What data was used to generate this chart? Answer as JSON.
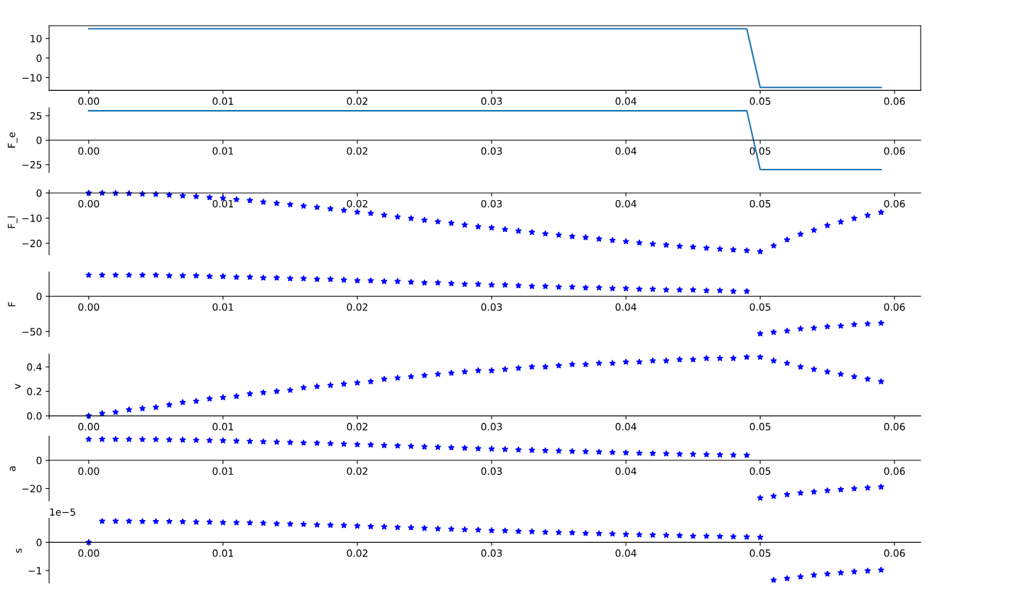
{
  "chart_data": [
    {
      "type": "line",
      "color": "#1f77b4",
      "line_style": "solid",
      "x": [
        0,
        0.001,
        0.002,
        0.003,
        0.004,
        0.005,
        0.006,
        0.007,
        0.008,
        0.009,
        0.01,
        0.011,
        0.012,
        0.013,
        0.014,
        0.015,
        0.016,
        0.017,
        0.018,
        0.019,
        0.02,
        0.021,
        0.022,
        0.023,
        0.024,
        0.025,
        0.026,
        0.027,
        0.028,
        0.029,
        0.03,
        0.031,
        0.032,
        0.033,
        0.034,
        0.035,
        0.036,
        0.037,
        0.038,
        0.039,
        0.04,
        0.041,
        0.042,
        0.043,
        0.044,
        0.045,
        0.046,
        0.047,
        0.048,
        0.049,
        0.05,
        0.051,
        0.052,
        0.053,
        0.054,
        0.055,
        0.056,
        0.057,
        0.058,
        0.059
      ],
      "values": [
        15,
        15,
        15,
        15,
        15,
        15,
        15,
        15,
        15,
        15,
        15,
        15,
        15,
        15,
        15,
        15,
        15,
        15,
        15,
        15,
        15,
        15,
        15,
        15,
        15,
        15,
        15,
        15,
        15,
        15,
        15,
        15,
        15,
        15,
        15,
        15,
        15,
        15,
        15,
        15,
        15,
        15,
        15,
        15,
        15,
        15,
        15,
        15,
        15,
        15,
        -15,
        -15,
        -15,
        -15,
        -15,
        -15,
        -15,
        -15,
        -15,
        -15
      ],
      "xlim": [
        -0.00295,
        0.06195
      ],
      "xticks": [
        {
          "value": 0,
          "label": "0.00"
        },
        {
          "value": 0.01,
          "label": "0.01"
        },
        {
          "value": 0.02,
          "label": "0.02"
        },
        {
          "value": 0.03,
          "label": "0.03"
        },
        {
          "value": 0.04,
          "label": "0.04"
        },
        {
          "value": 0.05,
          "label": "0.05"
        },
        {
          "value": 0.06,
          "label": "0.06"
        }
      ],
      "ylim": [
        -16.5,
        16.5
      ],
      "yticks": [
        {
          "value": -10,
          "label": "−10"
        },
        0,
        10
      ]
    },
    {
      "type": "line",
      "color": "#1f77b4",
      "line_style": "solid",
      "ylabel": "F_e",
      "x": [
        0,
        0.001,
        0.002,
        0.003,
        0.004,
        0.005,
        0.006,
        0.007,
        0.008,
        0.009,
        0.01,
        0.011,
        0.012,
        0.013,
        0.014,
        0.015,
        0.016,
        0.017,
        0.018,
        0.019,
        0.02,
        0.021,
        0.022,
        0.023,
        0.024,
        0.025,
        0.026,
        0.027,
        0.028,
        0.029,
        0.03,
        0.031,
        0.032,
        0.033,
        0.034,
        0.035,
        0.036,
        0.037,
        0.038,
        0.039,
        0.04,
        0.041,
        0.042,
        0.043,
        0.044,
        0.045,
        0.046,
        0.047,
        0.048,
        0.049,
        0.05,
        0.051,
        0.052,
        0.053,
        0.054,
        0.055,
        0.056,
        0.057,
        0.058,
        0.059
      ],
      "values": [
        30,
        30,
        30,
        30,
        30,
        30,
        30,
        30,
        30,
        30,
        30,
        30,
        30,
        30,
        30,
        30,
        30,
        30,
        30,
        30,
        30,
        30,
        30,
        30,
        30,
        30,
        30,
        30,
        30,
        30,
        30,
        30,
        30,
        30,
        30,
        30,
        30,
        30,
        30,
        30,
        30,
        30,
        30,
        30,
        30,
        30,
        30,
        30,
        30,
        30,
        -30,
        -30,
        -30,
        -30,
        -30,
        -30,
        -30,
        -30,
        -30,
        -30
      ],
      "xlim": [
        -0.00295,
        0.06195
      ],
      "xticks": [
        {
          "value": 0,
          "label": "0.00"
        },
        {
          "value": 0.01,
          "label": "0.01"
        },
        {
          "value": 0.02,
          "label": "0.02"
        },
        {
          "value": 0.03,
          "label": "0.03"
        },
        {
          "value": 0.04,
          "label": "0.04"
        },
        {
          "value": 0.05,
          "label": "0.05"
        },
        {
          "value": 0.06,
          "label": "0.06"
        }
      ],
      "ylim": [
        -33,
        33
      ],
      "yticks": [
        {
          "value": -25,
          "label": "−25"
        },
        0,
        25
      ]
    },
    {
      "type": "scatter",
      "color": "#0000ff",
      "marker": "star",
      "ylabel": "F_l",
      "x": [
        0,
        0.001,
        0.002,
        0.003,
        0.004,
        0.005,
        0.006,
        0.007,
        0.008,
        0.009,
        0.01,
        0.011,
        0.012,
        0.013,
        0.014,
        0.015,
        0.016,
        0.017,
        0.018,
        0.019,
        0.02,
        0.021,
        0.022,
        0.023,
        0.024,
        0.025,
        0.026,
        0.027,
        0.028,
        0.029,
        0.03,
        0.031,
        0.032,
        0.033,
        0.034,
        0.035,
        0.036,
        0.037,
        0.038,
        0.039,
        0.04,
        0.041,
        0.042,
        0.043,
        0.044,
        0.045,
        0.046,
        0.047,
        0.048,
        0.049,
        0.05,
        0.051,
        0.052,
        0.053,
        0.054,
        0.055,
        0.056,
        0.057,
        0.058,
        0.059
      ],
      "values": [
        0,
        0,
        -0.1,
        -0.2,
        -0.4,
        -0.5,
        -0.8,
        -1.1,
        -1.4,
        -1.8,
        -2.1,
        -2.6,
        -3.0,
        -3.6,
        -4.1,
        -4.6,
        -5.2,
        -5.7,
        -6.3,
        -6.9,
        -7.6,
        -8.1,
        -8.8,
        -9.5,
        -10.1,
        -10.8,
        -11.4,
        -12.0,
        -12.7,
        -13.4,
        -13.8,
        -14.5,
        -15.1,
        -15.6,
        -16.2,
        -16.7,
        -17.3,
        -17.7,
        -18.3,
        -18.8,
        -19.3,
        -19.8,
        -20.3,
        -20.7,
        -21.2,
        -21.5,
        -21.9,
        -22.3,
        -22.6,
        -22.9,
        -23.3,
        -21.0,
        -18.6,
        -16.4,
        -14.8,
        -12.9,
        -11.5,
        -10.1,
        -8.9,
        -7.7
      ],
      "xlim": [
        -0.00295,
        0.06195
      ],
      "xticks": [
        {
          "value": 0,
          "label": "0.00"
        },
        {
          "value": 0.01,
          "label": "0.01"
        },
        {
          "value": 0.02,
          "label": "0.02"
        },
        {
          "value": 0.03,
          "label": "0.03"
        },
        {
          "value": 0.04,
          "label": "0.04"
        },
        {
          "value": 0.05,
          "label": "0.05"
        },
        {
          "value": 0.06,
          "label": "0.06"
        }
      ],
      "ylim": [
        -24.5,
        1.2
      ],
      "yticks": [
        {
          "value": -20,
          "label": "−20"
        },
        {
          "value": -10,
          "label": "−10"
        },
        0
      ]
    },
    {
      "type": "scatter",
      "color": "#0000ff",
      "marker": "star",
      "ylabel": "F",
      "x": [
        0,
        0.001,
        0.002,
        0.003,
        0.004,
        0.005,
        0.006,
        0.007,
        0.008,
        0.009,
        0.01,
        0.011,
        0.012,
        0.013,
        0.014,
        0.015,
        0.016,
        0.017,
        0.018,
        0.019,
        0.02,
        0.021,
        0.022,
        0.023,
        0.024,
        0.025,
        0.026,
        0.027,
        0.028,
        0.029,
        0.03,
        0.031,
        0.032,
        0.033,
        0.034,
        0.035,
        0.036,
        0.037,
        0.038,
        0.039,
        0.04,
        0.041,
        0.042,
        0.043,
        0.044,
        0.045,
        0.046,
        0.047,
        0.048,
        0.049,
        0.05,
        0.051,
        0.052,
        0.053,
        0.054,
        0.055,
        0.056,
        0.057,
        0.058,
        0.059
      ],
      "values": [
        30,
        30,
        30,
        30,
        30,
        30,
        29,
        29,
        29,
        28,
        28,
        27,
        27,
        26,
        26,
        25,
        25,
        24,
        24,
        23,
        22,
        22,
        21,
        21,
        20,
        19,
        19,
        18,
        17,
        17,
        16,
        16,
        15,
        14,
        14,
        13,
        13,
        12,
        12,
        11,
        11,
        10,
        10,
        9,
        9,
        9,
        8,
        8,
        7,
        7,
        -53,
        -51,
        -49,
        -46,
        -45,
        -43,
        -42,
        -40,
        -39,
        -38
      ],
      "xlim": [
        -0.00295,
        0.06195
      ],
      "xticks": [
        {
          "value": 0,
          "label": "0.00"
        },
        {
          "value": 0.01,
          "label": "0.01"
        },
        {
          "value": 0.02,
          "label": "0.02"
        },
        {
          "value": 0.03,
          "label": "0.03"
        },
        {
          "value": 0.04,
          "label": "0.04"
        },
        {
          "value": 0.05,
          "label": "0.05"
        },
        {
          "value": 0.06,
          "label": "0.06"
        }
      ],
      "ylim": [
        -57.2,
        34.2
      ],
      "yticks": [
        {
          "value": -50,
          "label": "−50"
        },
        0
      ]
    },
    {
      "type": "scatter",
      "color": "#0000ff",
      "marker": "star",
      "ylabel": "v",
      "x": [
        0,
        0.001,
        0.002,
        0.003,
        0.004,
        0.005,
        0.006,
        0.007,
        0.008,
        0.009,
        0.01,
        0.011,
        0.012,
        0.013,
        0.014,
        0.015,
        0.016,
        0.017,
        0.018,
        0.019,
        0.02,
        0.021,
        0.022,
        0.023,
        0.024,
        0.025,
        0.026,
        0.027,
        0.028,
        0.029,
        0.03,
        0.031,
        0.032,
        0.033,
        0.034,
        0.035,
        0.036,
        0.037,
        0.038,
        0.039,
        0.04,
        0.041,
        0.042,
        0.043,
        0.044,
        0.045,
        0.046,
        0.047,
        0.048,
        0.049,
        0.05,
        0.051,
        0.052,
        0.053,
        0.054,
        0.055,
        0.056,
        0.057,
        0.058,
        0.059
      ],
      "values": [
        0.0,
        0.02,
        0.03,
        0.05,
        0.06,
        0.07,
        0.09,
        0.11,
        0.12,
        0.14,
        0.15,
        0.16,
        0.18,
        0.19,
        0.2,
        0.21,
        0.23,
        0.24,
        0.25,
        0.26,
        0.27,
        0.28,
        0.3,
        0.31,
        0.32,
        0.33,
        0.34,
        0.35,
        0.36,
        0.37,
        0.37,
        0.38,
        0.39,
        0.4,
        0.4,
        0.41,
        0.42,
        0.42,
        0.43,
        0.43,
        0.44,
        0.44,
        0.45,
        0.45,
        0.46,
        0.46,
        0.47,
        0.47,
        0.47,
        0.48,
        0.48,
        0.45,
        0.43,
        0.4,
        0.38,
        0.36,
        0.34,
        0.32,
        0.3,
        0.28
      ],
      "xlim": [
        -0.00295,
        0.06195
      ],
      "xticks": [
        {
          "value": 0,
          "label": "0.00"
        },
        {
          "value": 0.01,
          "label": "0.01"
        },
        {
          "value": 0.02,
          "label": "0.02"
        },
        {
          "value": 0.03,
          "label": "0.03"
        },
        {
          "value": 0.04,
          "label": "0.04"
        },
        {
          "value": 0.05,
          "label": "0.05"
        },
        {
          "value": 0.06,
          "label": "0.06"
        }
      ],
      "ylim": [
        -0.024,
        0.504
      ],
      "yticks": [
        {
          "value": 0,
          "label": "0.0"
        },
        {
          "value": 0.2,
          "label": "0.2"
        },
        {
          "value": 0.4,
          "label": "0.4"
        }
      ]
    },
    {
      "type": "scatter",
      "color": "#0000ff",
      "marker": "star",
      "ylabel": "a",
      "x": [
        0,
        0.001,
        0.002,
        0.003,
        0.004,
        0.005,
        0.006,
        0.007,
        0.008,
        0.009,
        0.01,
        0.011,
        0.012,
        0.013,
        0.014,
        0.015,
        0.016,
        0.017,
        0.018,
        0.019,
        0.02,
        0.021,
        0.022,
        0.023,
        0.024,
        0.025,
        0.026,
        0.027,
        0.028,
        0.029,
        0.03,
        0.031,
        0.032,
        0.033,
        0.034,
        0.035,
        0.036,
        0.037,
        0.038,
        0.039,
        0.04,
        0.041,
        0.042,
        0.043,
        0.044,
        0.045,
        0.046,
        0.047,
        0.048,
        0.049,
        0.05,
        0.051,
        0.052,
        0.053,
        0.054,
        0.055,
        0.056,
        0.057,
        0.058,
        0.059
      ],
      "values": [
        15.0,
        15.0,
        15.0,
        14.9,
        14.8,
        14.8,
        14.6,
        14.5,
        14.3,
        14.1,
        14.0,
        13.7,
        13.5,
        13.2,
        13.0,
        12.7,
        12.4,
        12.2,
        11.9,
        11.6,
        11.2,
        11.0,
        10.6,
        10.3,
        10.0,
        9.6,
        9.3,
        9.0,
        8.7,
        8.3,
        8.1,
        7.8,
        7.5,
        7.2,
        6.9,
        6.7,
        6.4,
        6.2,
        5.9,
        5.6,
        5.4,
        5.1,
        4.9,
        4.7,
        4.4,
        4.3,
        4.1,
        3.9,
        3.7,
        3.6,
        -26.7,
        -25.5,
        -24.3,
        -23.2,
        -22.4,
        -21.5,
        -20.8,
        -20.1,
        -19.5,
        -18.9
      ],
      "xlim": [
        -0.00295,
        0.06195
      ],
      "xticks": [
        {
          "value": 0,
          "label": "0.00"
        },
        {
          "value": 0.01,
          "label": "0.01"
        },
        {
          "value": 0.02,
          "label": "0.02"
        },
        {
          "value": 0.03,
          "label": "0.03"
        },
        {
          "value": 0.04,
          "label": "0.04"
        },
        {
          "value": 0.05,
          "label": "0.05"
        },
        {
          "value": 0.06,
          "label": "0.06"
        }
      ],
      "ylim": [
        -28.8,
        17.1
      ],
      "yticks": [
        {
          "value": -20,
          "label": "−20"
        },
        0
      ]
    },
    {
      "type": "scatter",
      "color": "#0000ff",
      "marker": "star",
      "ylabel": "s",
      "annotations": [
        "1e−5"
      ],
      "x": [
        0,
        0.001,
        0.002,
        0.003,
        0.004,
        0.005,
        0.006,
        0.007,
        0.008,
        0.009,
        0.01,
        0.011,
        0.012,
        0.013,
        0.014,
        0.015,
        0.016,
        0.017,
        0.018,
        0.019,
        0.02,
        0.021,
        0.022,
        0.023,
        0.024,
        0.025,
        0.026,
        0.027,
        0.028,
        0.029,
        0.03,
        0.031,
        0.032,
        0.033,
        0.034,
        0.035,
        0.036,
        0.037,
        0.038,
        0.039,
        0.04,
        0.041,
        0.042,
        0.043,
        0.044,
        0.045,
        0.046,
        0.047,
        0.048,
        0.049,
        0.05,
        0.051,
        0.052,
        0.053,
        0.054,
        0.055,
        0.056,
        0.057,
        0.058,
        0.059
      ],
      "values": [
        0,
        0.75,
        0.75,
        0.75,
        0.74,
        0.74,
        0.74,
        0.73,
        0.72,
        0.72,
        0.7,
        0.7,
        0.69,
        0.68,
        0.66,
        0.65,
        0.64,
        0.62,
        0.61,
        0.6,
        0.58,
        0.56,
        0.55,
        0.53,
        0.52,
        0.5,
        0.48,
        0.47,
        0.45,
        0.44,
        0.42,
        0.41,
        0.39,
        0.38,
        0.36,
        0.35,
        0.34,
        0.32,
        0.31,
        0.3,
        0.28,
        0.27,
        0.26,
        0.25,
        0.24,
        0.22,
        0.22,
        0.21,
        0.2,
        0.19,
        0.18,
        -1.34,
        -1.28,
        -1.22,
        -1.16,
        -1.12,
        -1.08,
        -1.04,
        -1.01,
        -0.98
      ],
      "xlim": [
        -0.00295,
        0.06195
      ],
      "xticks": [
        {
          "value": 0,
          "label": "0.00"
        },
        {
          "value": 0.01,
          "label": "0.01"
        },
        {
          "value": 0.02,
          "label": "0.02"
        },
        {
          "value": 0.03,
          "label": "0.03"
        },
        {
          "value": 0.04,
          "label": "0.04"
        },
        {
          "value": 0.05,
          "label": "0.05"
        },
        {
          "value": 0.06,
          "label": "0.06"
        }
      ],
      "ylim": [
        -1.44,
        0.85
      ],
      "yticks": [
        {
          "value": -1,
          "label": "−1"
        },
        0
      ]
    }
  ]
}
